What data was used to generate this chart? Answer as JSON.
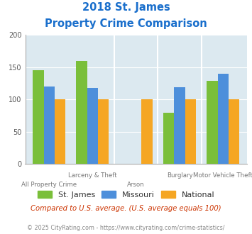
{
  "title_line1": "2018 St. James",
  "title_line2": "Property Crime Comparison",
  "title_color": "#1a6fcc",
  "categories": [
    "All Property Crime",
    "Larceny & Theft",
    "Arson",
    "Burglary",
    "Motor Vehicle Theft"
  ],
  "st_james": [
    145,
    160,
    null,
    79,
    129
  ],
  "missouri": [
    120,
    118,
    null,
    119,
    140
  ],
  "national": [
    100,
    100,
    100,
    100,
    100
  ],
  "colors": {
    "st_james": "#7abf3a",
    "missouri": "#4d8fdb",
    "national": "#f5a623"
  },
  "ylim": [
    0,
    200
  ],
  "yticks": [
    0,
    50,
    100,
    150,
    200
  ],
  "bg_color": "#dce9f0",
  "note": "Compared to U.S. average. (U.S. average equals 100)",
  "note_color": "#cc3300",
  "footer": "© 2025 CityRating.com - https://www.cityrating.com/crime-statistics/",
  "footer_color": "#888888",
  "legend_labels": [
    "St. James",
    "Missouri",
    "National"
  ],
  "top_labels": [
    "",
    "Larceny & Theft",
    "",
    "Burglary",
    "Motor Vehicle Theft"
  ],
  "bottom_labels": [
    "All Property Crime",
    "",
    "Arson",
    "",
    ""
  ]
}
